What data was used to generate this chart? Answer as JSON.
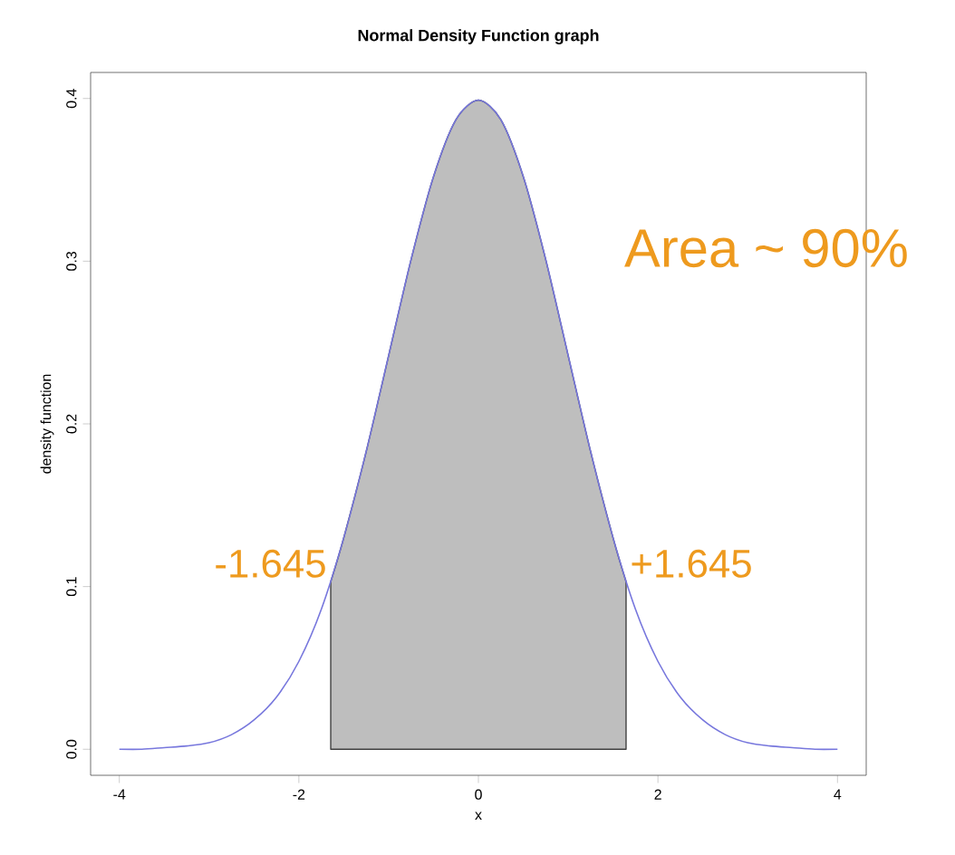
{
  "chart_data": {
    "type": "line",
    "title": "Normal Density Function graph",
    "xlabel": "x",
    "ylabel": "density function",
    "xlim": [
      -4.32,
      4.32
    ],
    "ylim": [
      -0.016,
      0.416
    ],
    "xticks": [
      -4,
      -2,
      0,
      2,
      4
    ],
    "yticks": [
      {
        "value": 0,
        "label": "0.0"
      },
      {
        "value": 0.1,
        "label": "0.1"
      },
      {
        "value": 0.2,
        "label": "0.2"
      },
      {
        "value": 0.3,
        "label": "0.3"
      },
      {
        "value": 0.4,
        "label": "0.4"
      }
    ],
    "series": [
      {
        "type": "area",
        "color": "#bebebe",
        "x": [
          -1.645,
          -1.5,
          -1.25,
          -1,
          -0.75,
          -0.5,
          -0.25,
          0,
          0.25,
          0.5,
          0.75,
          1,
          1.25,
          1.5,
          1.645
        ],
        "values": [
          0.103,
          0.13,
          0.183,
          0.242,
          0.301,
          0.352,
          0.387,
          0.399,
          0.387,
          0.352,
          0.301,
          0.242,
          0.183,
          0.13,
          0.103
        ]
      },
      {
        "color": "#7777dd",
        "x": [
          -4,
          -3.75,
          -3.5,
          -3.25,
          -3,
          -2.75,
          -2.5,
          -2.25,
          -2,
          -1.75,
          -1.5,
          -1.25,
          -1,
          -0.75,
          -0.5,
          -0.25,
          0,
          0.25,
          0.5,
          0.75,
          1,
          1.25,
          1.5,
          1.75,
          2,
          2.25,
          2.5,
          2.75,
          3,
          3.25,
          3.5,
          3.75,
          4
        ],
        "values": [
          0.0,
          0.0,
          0.001,
          0.002,
          0.004,
          0.009,
          0.018,
          0.032,
          0.054,
          0.086,
          0.13,
          0.183,
          0.242,
          0.301,
          0.352,
          0.387,
          0.399,
          0.387,
          0.352,
          0.301,
          0.242,
          0.183,
          0.13,
          0.086,
          0.054,
          0.032,
          0.018,
          0.009,
          0.004,
          0.002,
          0.001,
          0.0,
          0.0
        ]
      }
    ],
    "annotations": [
      "Area ~ 90%",
      {
        "text": "-1.645",
        "x": -1.645,
        "y": 0.103
      },
      {
        "text": "+1.645",
        "x": 1.645,
        "y": 0.103
      }
    ]
  }
}
